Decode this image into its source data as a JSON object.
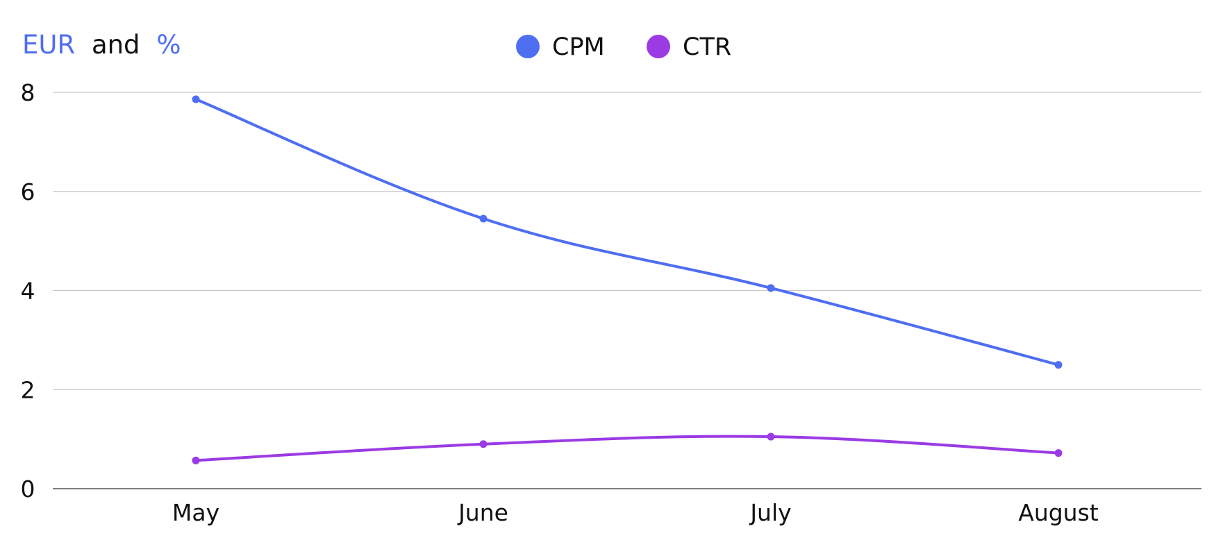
{
  "chart_data": {
    "type": "line",
    "title": "",
    "ylabel": {
      "parts": [
        {
          "text": "EUR",
          "color": "#4e6ef2"
        },
        {
          "text": "and",
          "color": "#111111"
        },
        {
          "text": "%",
          "color": "#4e6ef2"
        }
      ]
    },
    "xlabel": "",
    "categories": [
      "May",
      "June",
      "July",
      "August"
    ],
    "ylim": [
      0,
      8
    ],
    "yticks": [
      "0",
      "2",
      "4",
      "6",
      "8"
    ],
    "grid": true,
    "legend_position": "top-center",
    "series": [
      {
        "name": "CPM",
        "color": "#4e6ef2",
        "values": [
          7.86,
          5.45,
          4.05,
          2.5
        ]
      },
      {
        "name": "CTR",
        "color": "#9b3be4",
        "values": [
          0.57,
          0.9,
          1.05,
          0.72
        ]
      }
    ]
  }
}
